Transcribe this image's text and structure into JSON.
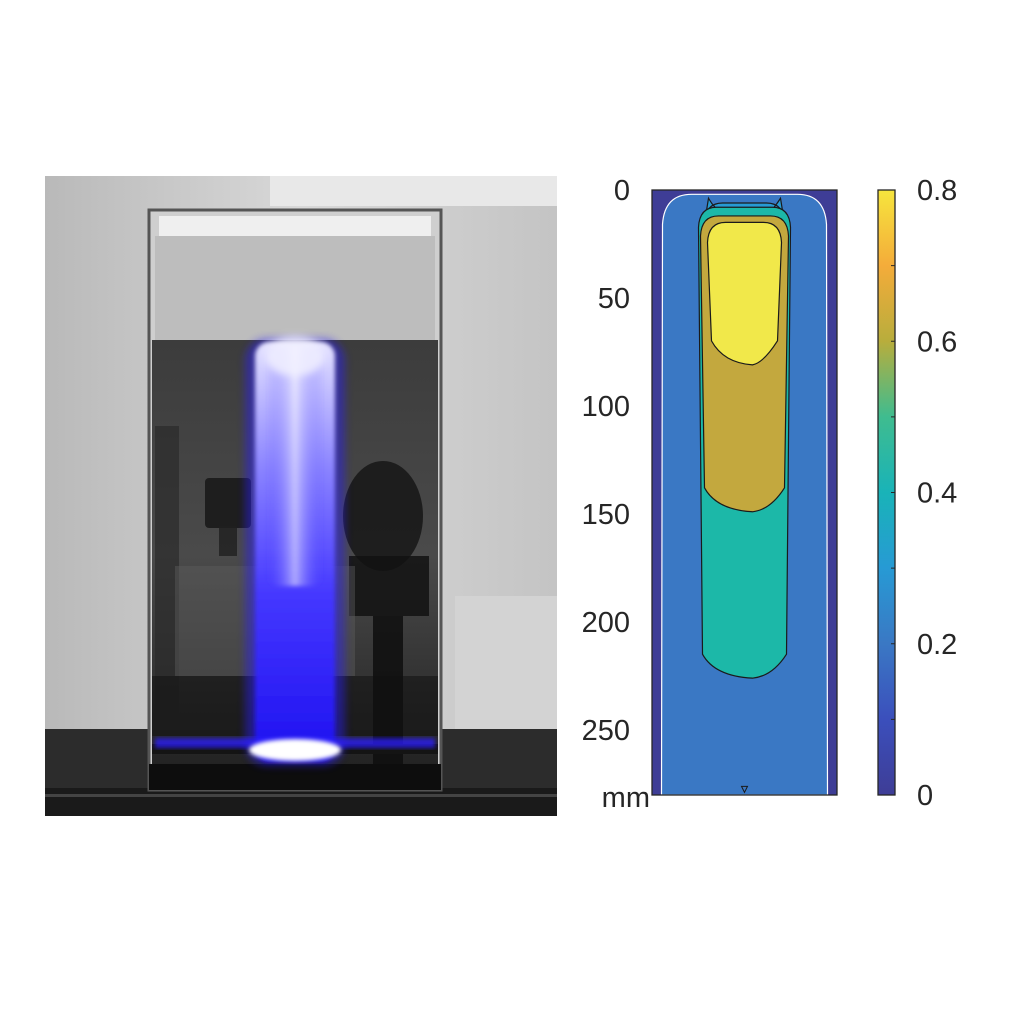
{
  "photo": {
    "icon": "beaker-laser-photo",
    "beam_color": "#2a1fff"
  },
  "chart_data": {
    "type": "heatmap",
    "plot_type": "filled-contour",
    "y_axis": {
      "ticks": [
        0,
        50,
        100,
        150,
        200,
        250
      ],
      "tick_labels": [
        "0",
        "50",
        "100",
        "150",
        "200",
        "250"
      ],
      "unit_label": "mm",
      "range": [
        0,
        280
      ],
      "direction": "reversed"
    },
    "colorbar": {
      "range": [
        0,
        0.8
      ],
      "ticks": [
        0,
        0.2,
        0.4,
        0.6,
        0.8
      ],
      "tick_labels": [
        "0",
        "0.2",
        "0.4",
        "0.6",
        "0.8"
      ],
      "colors": [
        {
          "stop": 0.0,
          "color": "#3e3d96"
        },
        {
          "stop": 0.1,
          "color": "#3b4fbc"
        },
        {
          "stop": 0.2,
          "color": "#3a78c4"
        },
        {
          "stop": 0.3,
          "color": "#279ad4"
        },
        {
          "stop": 0.4,
          "color": "#19b3b8"
        },
        {
          "stop": 0.5,
          "color": "#3fbc8f"
        },
        {
          "stop": 0.6,
          "color": "#b8ad3c"
        },
        {
          "stop": 0.7,
          "color": "#f4ac3a"
        },
        {
          "stop": 0.8,
          "color": "#f6e53d"
        }
      ]
    },
    "levels": [
      {
        "value": 0.0,
        "color": "#3e3d96",
        "y_start": 0,
        "y_end": 280
      },
      {
        "value": 0.2,
        "color": "#3a78c4",
        "y_start": 2,
        "y_end": 280
      },
      {
        "value": 0.3,
        "color": "#279ad4",
        "y_start": 6,
        "y_end": 14
      },
      {
        "value": 0.4,
        "color": "#1cb8a8",
        "y_start": 8,
        "y_end": 225
      },
      {
        "value": 0.6,
        "color": "#c3a83e",
        "y_start": 12,
        "y_end": 148
      },
      {
        "value": 0.75,
        "color": "#f1e84a",
        "y_start": 15,
        "y_end": 80
      }
    ]
  }
}
